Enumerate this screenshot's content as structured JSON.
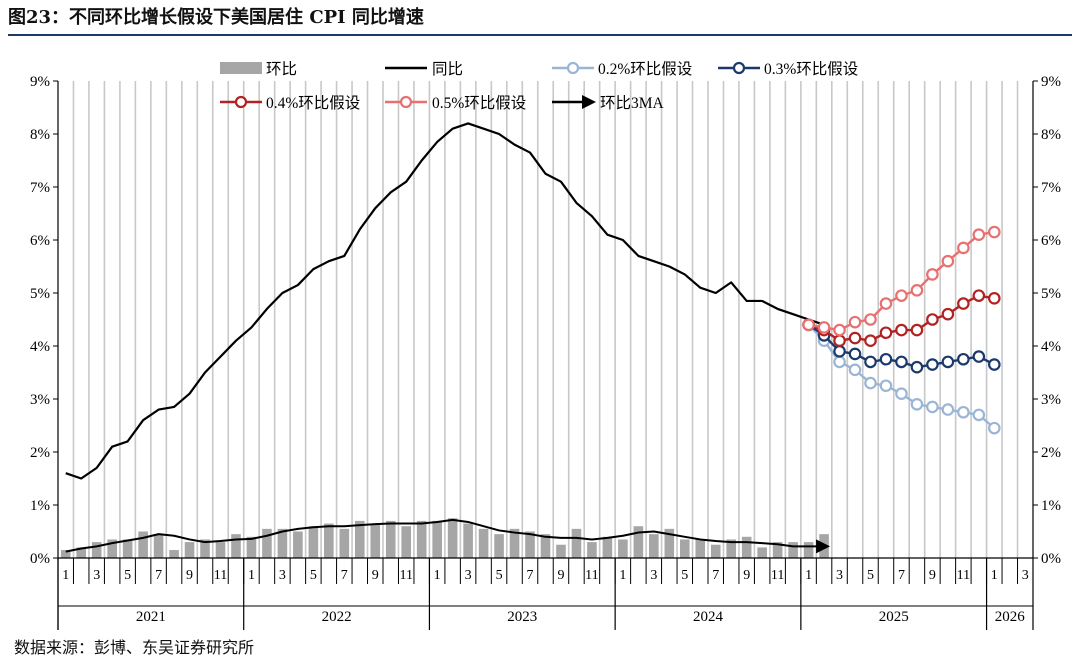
{
  "title": "图23：不同环比增长假设下美国居住 CPI 同比增速",
  "source": "数据来源：彭博、东吴证券研究所",
  "chart_data": {
    "type": "line",
    "title": "图23：不同环比增长假设下美国居住 CPI 同比增速",
    "ylim": [
      0,
      9
    ],
    "y_ticks": [
      "0%",
      "1%",
      "2%",
      "3%",
      "4%",
      "5%",
      "6%",
      "7%",
      "8%",
      "9%"
    ],
    "y2_ticks": [
      "0%",
      "1%",
      "2%",
      "3%",
      "4%",
      "5%",
      "6%",
      "7%",
      "8%",
      "9%"
    ],
    "grid": "vertical",
    "month_ticks": [
      "1",
      "3",
      "5",
      "7",
      "9",
      "11",
      "1",
      "3",
      "5",
      "7",
      "9",
      "11",
      "1",
      "3",
      "5",
      "7",
      "9",
      "11",
      "1",
      "3",
      "5",
      "7",
      "9",
      "11",
      "1",
      "3",
      "5",
      "7",
      "9",
      "11",
      "1",
      "3"
    ],
    "years": [
      "2021",
      "2022",
      "2023",
      "2024",
      "2025",
      "2026"
    ],
    "legend": {
      "row1": [
        "环比",
        "同比",
        "0.2%环比假设",
        "0.3%环比假设"
      ],
      "row2": [
        "0.4%环比假设",
        "0.5%环比假设",
        "环比3MA"
      ]
    },
    "colors": {
      "mom_bar": "#a6a6a6",
      "yoy": "#000000",
      "s02": "#9bb5d6",
      "s03": "#1b3a6b",
      "s04": "#b22222",
      "s05": "#e87070",
      "ma3": "#000000",
      "grid": "#c8c8c8"
    },
    "series": [
      {
        "name": "环比",
        "start": "2021-01",
        "values": [
          0.15,
          0.2,
          0.3,
          0.35,
          0.35,
          0.5,
          0.45,
          0.15,
          0.3,
          0.35,
          0.3,
          0.45,
          0.4,
          0.55,
          0.55,
          0.5,
          0.6,
          0.65,
          0.55,
          0.7,
          0.65,
          0.7,
          0.6,
          0.7,
          0.7,
          0.75,
          0.65,
          0.55,
          0.45,
          0.55,
          0.5,
          0.45,
          0.25,
          0.55,
          0.3,
          0.4,
          0.35,
          0.6,
          0.45,
          0.55,
          0.35,
          0.35,
          0.25,
          0.35,
          0.4,
          0.2,
          0.3,
          0.3,
          0.3,
          0.45
        ]
      },
      {
        "name": "同比",
        "start": "2021-01",
        "values": [
          1.6,
          1.5,
          1.7,
          2.1,
          2.2,
          2.6,
          2.8,
          2.85,
          3.1,
          3.5,
          3.8,
          4.1,
          4.35,
          4.7,
          5.0,
          5.15,
          5.45,
          5.6,
          5.7,
          6.2,
          6.6,
          6.9,
          7.1,
          7.5,
          7.85,
          8.1,
          8.2,
          8.1,
          8.0,
          7.8,
          7.65,
          7.25,
          7.1,
          6.7,
          6.45,
          6.1,
          6.0,
          5.7,
          5.6,
          5.5,
          5.35,
          5.1,
          5.0,
          5.2,
          4.85,
          4.85,
          4.7,
          4.6,
          4.5,
          4.4
        ]
      },
      {
        "name": "0.2%环比假设",
        "start": "2025-01",
        "values": [
          4.4,
          4.1,
          3.7,
          3.55,
          3.3,
          3.25,
          3.1,
          2.9,
          2.85,
          2.8,
          2.75,
          2.7,
          2.45
        ]
      },
      {
        "name": "0.3%环比假设",
        "start": "2025-01",
        "values": [
          4.4,
          4.2,
          3.9,
          3.85,
          3.7,
          3.75,
          3.7,
          3.6,
          3.65,
          3.7,
          3.75,
          3.8,
          3.65
        ]
      },
      {
        "name": "0.4%环比假设",
        "start": "2025-01",
        "values": [
          4.4,
          4.3,
          4.1,
          4.15,
          4.1,
          4.25,
          4.3,
          4.3,
          4.5,
          4.6,
          4.8,
          4.95,
          4.9
        ]
      },
      {
        "name": "0.5%环比假设",
        "start": "2025-01",
        "values": [
          4.4,
          4.35,
          4.3,
          4.45,
          4.5,
          4.8,
          4.95,
          5.05,
          5.35,
          5.6,
          5.85,
          6.1,
          6.15
        ]
      },
      {
        "name": "环比3MA",
        "start": "2021-01",
        "values": [
          0.12,
          0.18,
          0.22,
          0.28,
          0.33,
          0.38,
          0.45,
          0.42,
          0.35,
          0.3,
          0.32,
          0.35,
          0.36,
          0.42,
          0.5,
          0.55,
          0.58,
          0.6,
          0.6,
          0.62,
          0.64,
          0.65,
          0.65,
          0.65,
          0.68,
          0.72,
          0.68,
          0.6,
          0.52,
          0.48,
          0.45,
          0.4,
          0.38,
          0.38,
          0.35,
          0.38,
          0.42,
          0.48,
          0.5,
          0.45,
          0.4,
          0.35,
          0.32,
          0.3,
          0.3,
          0.28,
          0.26,
          0.22,
          0.22,
          0.22
        ]
      }
    ]
  }
}
